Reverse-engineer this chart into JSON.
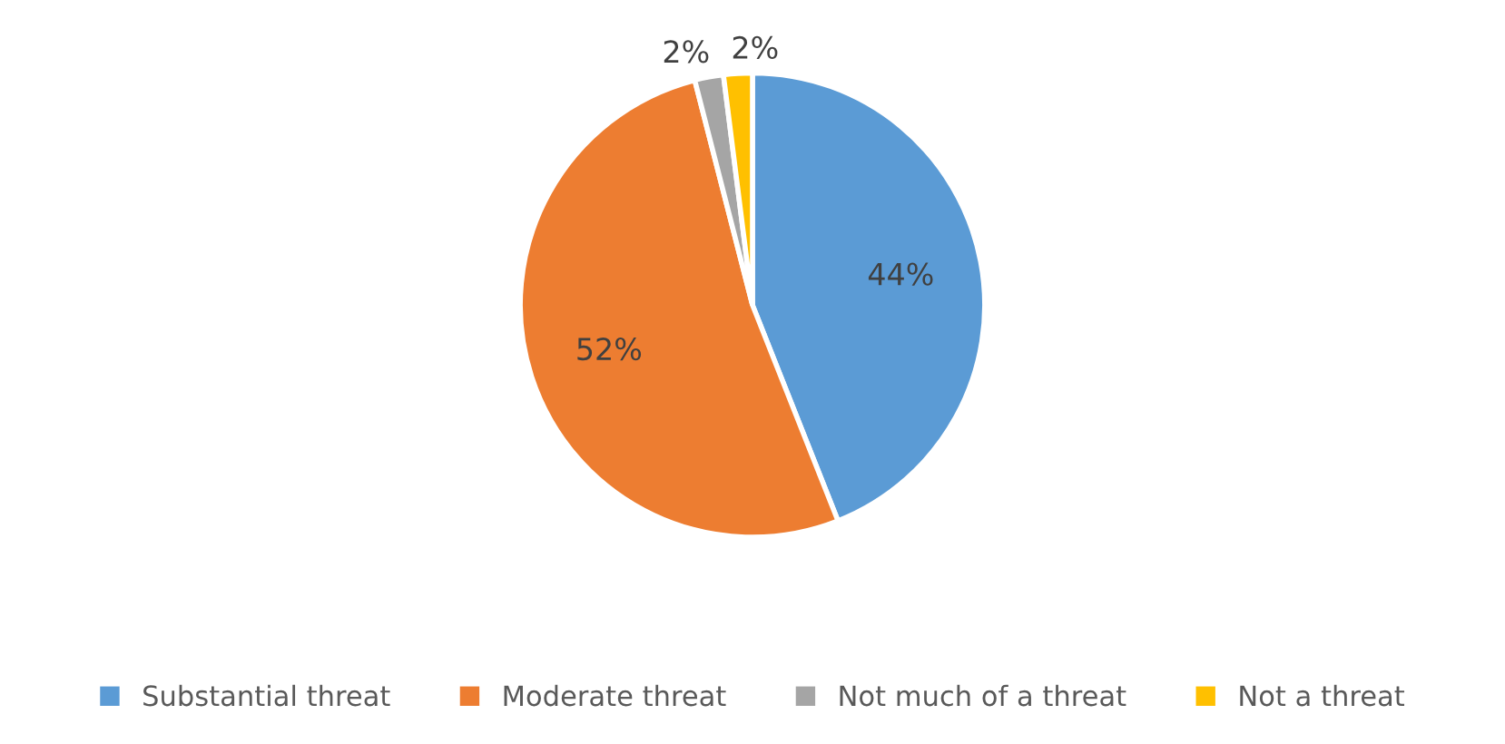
{
  "chart_data": {
    "type": "pie",
    "categories": [
      "Substantial threat",
      "Moderate threat",
      "Not much of a threat",
      "Not a threat"
    ],
    "values": [
      44,
      52,
      2,
      2
    ],
    "colors": [
      "#5b9bd5",
      "#ed7d31",
      "#a5a5a5",
      "#ffc000"
    ],
    "value_labels": [
      "44%",
      "52%",
      "2%",
      "2%"
    ],
    "legend": "bottom"
  }
}
